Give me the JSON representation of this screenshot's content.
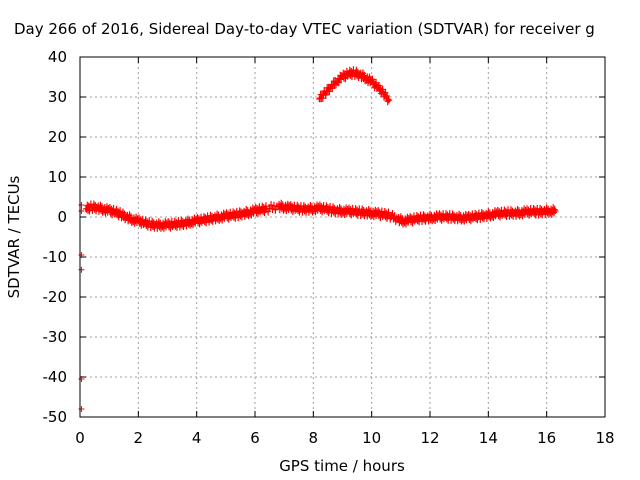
{
  "chart_data": {
    "type": "scatter",
    "title": "Day 266 of 2016, Sidereal Day-to-day VTEC variation (SDTVAR) for receiver g",
    "xlabel": "GPS time / hours",
    "ylabel": "SDTVAR / TECUs",
    "xlim": [
      0,
      18
    ],
    "ylim": [
      -50,
      40
    ],
    "xticks": [
      "0",
      "2",
      "4",
      "6",
      "8",
      "10",
      "12",
      "14",
      "16",
      "18"
    ],
    "yticks": [
      "-50",
      "-40",
      "-30",
      "-20",
      "-10",
      "0",
      "10",
      "20",
      "30",
      "40"
    ],
    "grid": true,
    "color": "#ff0000",
    "series": [
      {
        "points": [
          [
            0.2,
            2.0
          ],
          [
            0.4,
            2.5
          ],
          [
            0.6,
            2.3
          ],
          [
            0.8,
            2.0
          ],
          [
            1.0,
            1.6
          ],
          [
            1.2,
            1.2
          ],
          [
            1.4,
            0.7
          ],
          [
            1.6,
            0.0
          ],
          [
            1.8,
            -0.6
          ],
          [
            2.0,
            -1.0
          ],
          [
            2.2,
            -1.5
          ],
          [
            2.4,
            -1.8
          ],
          [
            2.6,
            -2.0
          ],
          [
            2.8,
            -2.0
          ],
          [
            3.0,
            -2.0
          ],
          [
            3.2,
            -1.9
          ],
          [
            3.4,
            -1.7
          ],
          [
            3.6,
            -1.5
          ],
          [
            3.8,
            -1.2
          ],
          [
            4.0,
            -1.0
          ],
          [
            4.2,
            -0.8
          ],
          [
            4.4,
            -0.5
          ],
          [
            4.6,
            -0.2
          ],
          [
            4.8,
            0.0
          ],
          [
            5.0,
            0.2
          ],
          [
            5.2,
            0.4
          ],
          [
            5.4,
            0.6
          ],
          [
            5.6,
            0.9
          ],
          [
            5.8,
            1.2
          ],
          [
            6.0,
            1.5
          ],
          [
            6.2,
            1.8
          ],
          [
            6.4,
            2.0
          ],
          [
            6.8,
            2.7
          ],
          [
            7.0,
            2.5
          ],
          [
            7.2,
            2.3
          ],
          [
            7.4,
            2.1
          ],
          [
            7.6,
            2.0
          ],
          [
            7.8,
            2.0
          ],
          [
            8.0,
            2.1
          ],
          [
            8.2,
            2.2
          ],
          [
            8.4,
            2.0
          ],
          [
            8.6,
            1.8
          ],
          [
            8.8,
            1.6
          ],
          [
            9.0,
            1.5
          ],
          [
            9.2,
            1.4
          ],
          [
            9.4,
            1.3
          ],
          [
            9.6,
            1.2
          ],
          [
            9.8,
            1.1
          ],
          [
            10.0,
            1.0
          ],
          [
            10.2,
            0.8
          ],
          [
            10.4,
            0.6
          ],
          [
            10.6,
            0.4
          ],
          [
            10.9,
            -0.5
          ],
          [
            11.1,
            -1.0
          ],
          [
            11.3,
            -0.8
          ],
          [
            11.5,
            -0.5
          ],
          [
            11.7,
            -0.3
          ],
          [
            11.9,
            -0.2
          ],
          [
            12.1,
            -0.1
          ],
          [
            12.3,
            0.0
          ],
          [
            12.5,
            0.0
          ],
          [
            12.7,
            0.0
          ],
          [
            12.9,
            -0.1
          ],
          [
            13.1,
            -0.2
          ],
          [
            13.3,
            -0.2
          ],
          [
            13.5,
            0.0
          ],
          [
            13.7,
            0.2
          ],
          [
            13.9,
            0.4
          ],
          [
            14.1,
            0.6
          ],
          [
            14.3,
            0.8
          ],
          [
            14.5,
            0.9
          ],
          [
            14.7,
            1.0
          ],
          [
            14.9,
            1.0
          ],
          [
            15.1,
            1.1
          ],
          [
            15.3,
            1.2
          ],
          [
            15.5,
            1.3
          ],
          [
            15.7,
            1.3
          ],
          [
            15.9,
            1.4
          ],
          [
            16.1,
            1.5
          ],
          [
            16.3,
            1.5
          ]
        ]
      },
      {
        "points": [
          [
            8.2,
            29.5
          ],
          [
            8.4,
            31.0
          ],
          [
            8.6,
            32.5
          ],
          [
            8.8,
            34.0
          ],
          [
            9.0,
            35.0
          ],
          [
            9.2,
            35.8
          ],
          [
            9.4,
            36.0
          ],
          [
            9.6,
            35.6
          ],
          [
            9.8,
            34.8
          ],
          [
            10.0,
            33.8
          ],
          [
            10.2,
            32.5
          ],
          [
            10.4,
            31.0
          ],
          [
            10.6,
            29.2
          ]
        ]
      },
      {
        "points": [
          [
            0.05,
            3.0
          ],
          [
            0.05,
            1.5
          ],
          [
            0.05,
            -9.5
          ],
          [
            0.05,
            -13.2
          ],
          [
            0.05,
            -40.5
          ],
          [
            0.05,
            -48.0
          ]
        ]
      }
    ]
  }
}
